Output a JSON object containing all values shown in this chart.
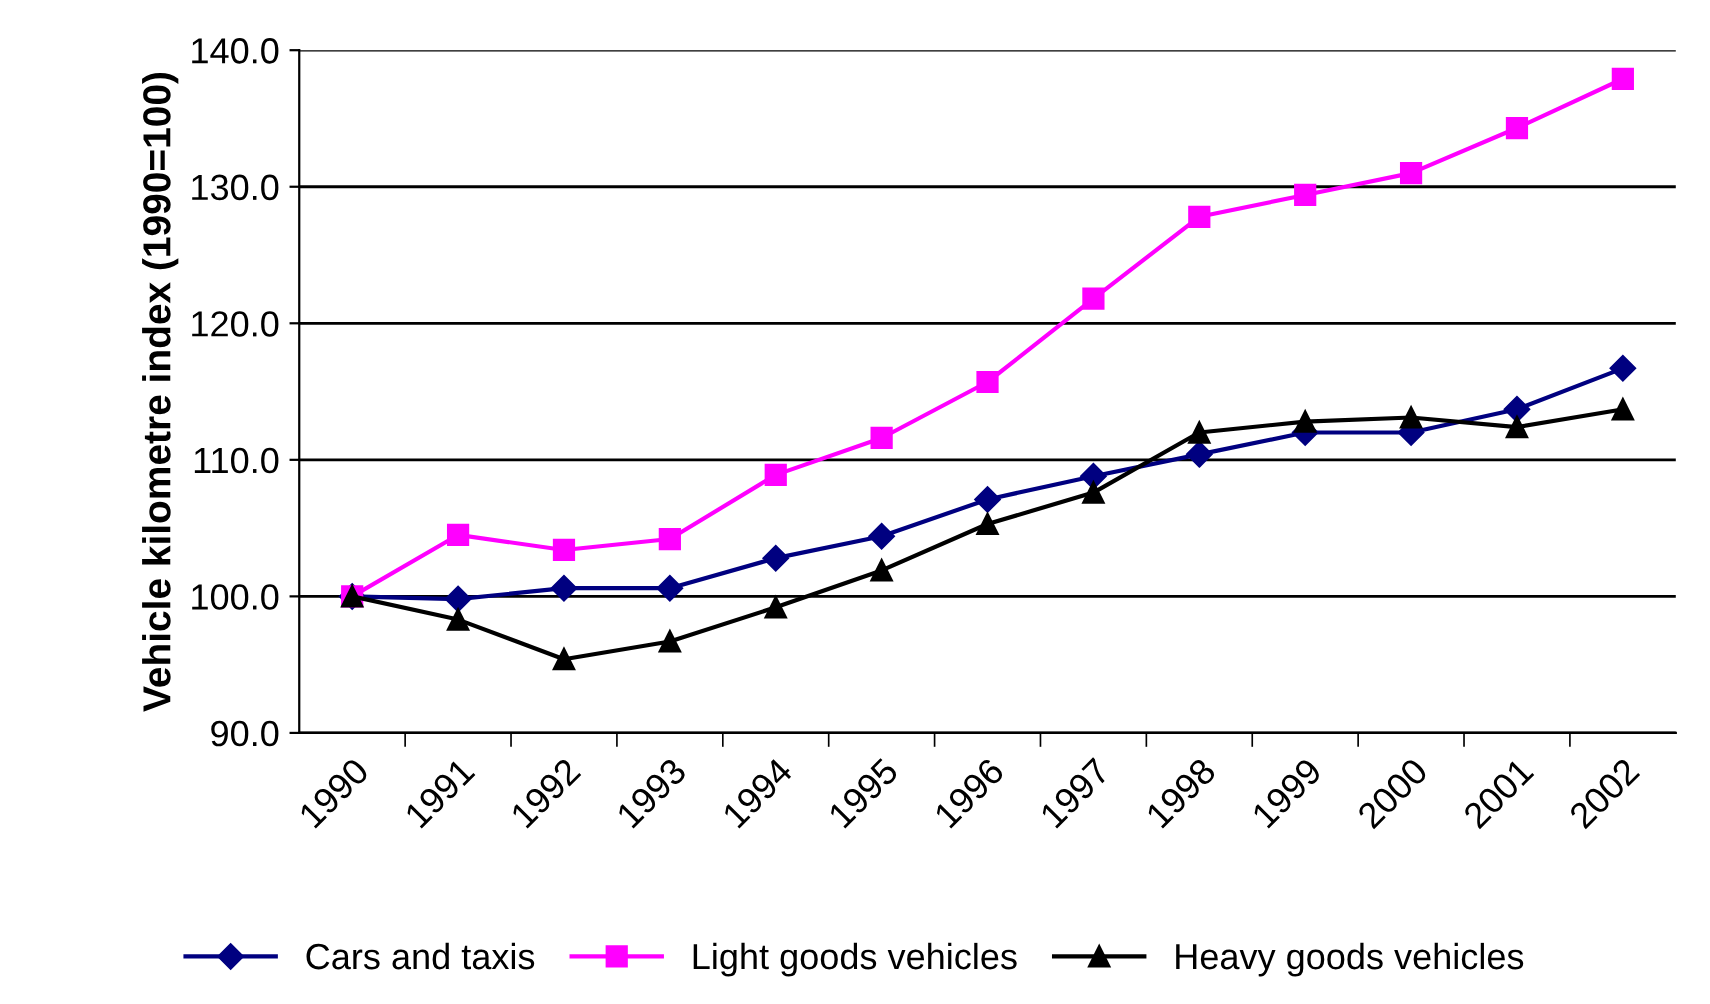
{
  "chart_data": {
    "type": "line",
    "ylabel": "Vehicle kilometre index (1990=100)",
    "categories": [
      "1990",
      "1991",
      "1992",
      "1993",
      "1994",
      "1995",
      "1996",
      "1997",
      "1998",
      "1999",
      "2000",
      "2001",
      "2002"
    ],
    "series": [
      {
        "name": "Cars and taxis",
        "color": "#000080",
        "marker": "diamond",
        "values": [
          100.0,
          99.8,
          100.6,
          100.6,
          102.8,
          104.4,
          107.1,
          108.8,
          110.4,
          112.0,
          112.0,
          113.7,
          116.7
        ]
      },
      {
        "name": "Light goods vehicles",
        "color": "#ff00ff",
        "marker": "square",
        "values": [
          100.0,
          104.5,
          103.4,
          104.2,
          108.9,
          111.6,
          115.7,
          121.8,
          127.8,
          129.4,
          131.0,
          134.3,
          137.9
        ]
      },
      {
        "name": "Heavy goods vehicles",
        "color": "#000000",
        "marker": "triangle",
        "values": [
          100.0,
          98.3,
          95.4,
          96.7,
          99.2,
          101.9,
          105.3,
          107.6,
          112.0,
          112.8,
          113.1,
          112.4,
          113.7
        ]
      }
    ],
    "ylim": [
      90,
      140
    ],
    "yticks": [
      {
        "value": 90,
        "label": "90.0"
      },
      {
        "value": 100,
        "label": "100.0"
      },
      {
        "value": 110,
        "label": "110.0"
      },
      {
        "value": 120,
        "label": "120.0"
      },
      {
        "value": 130,
        "label": "130.0"
      },
      {
        "value": 140,
        "label": "140.0"
      }
    ],
    "grid": "y",
    "legend": "bottom",
    "line_style": "solid"
  }
}
